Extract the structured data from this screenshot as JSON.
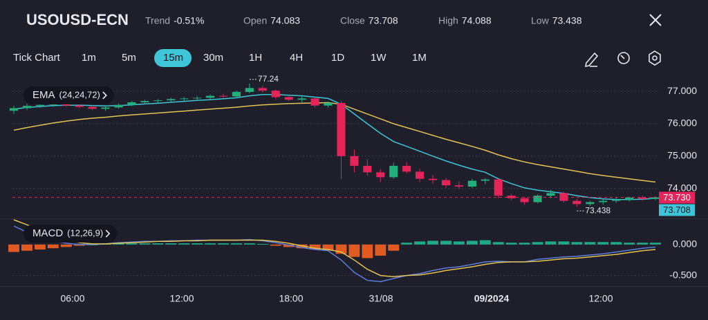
{
  "header": {
    "symbol": "USOUSD-ECN",
    "stats": [
      {
        "label": "Trend",
        "value": "-0.51%"
      },
      {
        "label": "Open",
        "value": "74.083"
      },
      {
        "label": "Close",
        "value": "73.708"
      },
      {
        "label": "High",
        "value": "74.088"
      },
      {
        "label": "Low",
        "value": "73.438"
      }
    ]
  },
  "timeframes": [
    "Tick Chart",
    "1m",
    "5m",
    "15m",
    "30m",
    "1H",
    "4H",
    "1D",
    "1W",
    "1M"
  ],
  "active_timeframe_index": 3,
  "chart": {
    "type": "candlestick",
    "indicator_label": "EMA",
    "indicator_params": "(24,24,72)",
    "up_color": "#22b07a",
    "down_color": "#e5245a",
    "ylim": [
      73.1,
      77.3
    ],
    "yticks": [
      {
        "value": 77,
        "label": "77.000"
      },
      {
        "value": 76,
        "label": "76.000"
      },
      {
        "value": 75,
        "label": "75.000"
      },
      {
        "value": 74,
        "label": "74.000"
      }
    ],
    "candles": [
      [
        76.4,
        76.55,
        76.3,
        76.48
      ],
      [
        76.48,
        76.62,
        76.42,
        76.55
      ],
      [
        76.55,
        76.62,
        76.48,
        76.58
      ],
      [
        76.58,
        76.66,
        76.52,
        76.62
      ],
      [
        76.62,
        76.68,
        76.52,
        76.56
      ],
      [
        76.56,
        76.62,
        76.48,
        76.52
      ],
      [
        76.52,
        76.58,
        76.42,
        76.46
      ],
      [
        76.46,
        76.56,
        76.4,
        76.5
      ],
      [
        76.5,
        76.62,
        76.46,
        76.58
      ],
      [
        76.58,
        76.7,
        76.54,
        76.66
      ],
      [
        76.66,
        76.74,
        76.6,
        76.7
      ],
      [
        76.7,
        76.76,
        76.64,
        76.72
      ],
      [
        76.72,
        76.8,
        76.66,
        76.76
      ],
      [
        76.76,
        76.82,
        76.7,
        76.78
      ],
      [
        76.78,
        76.86,
        76.72,
        76.8
      ],
      [
        76.8,
        76.9,
        76.76,
        76.86
      ],
      [
        76.86,
        76.92,
        76.8,
        76.84
      ],
      [
        76.84,
        77.02,
        76.8,
        76.98
      ],
      [
        76.98,
        77.24,
        76.94,
        77.1
      ],
      [
        77.1,
        77.18,
        76.96,
        77.02
      ],
      [
        77.02,
        77.06,
        76.76,
        76.82
      ],
      [
        76.82,
        76.88,
        76.7,
        76.74
      ],
      [
        76.74,
        76.84,
        76.66,
        76.78
      ],
      [
        76.78,
        76.82,
        76.5,
        76.56
      ],
      [
        76.56,
        76.68,
        76.5,
        76.64
      ],
      [
        76.64,
        76.7,
        74.3,
        75.0
      ],
      [
        75.0,
        75.2,
        74.5,
        74.7
      ],
      [
        74.7,
        74.9,
        74.4,
        74.5
      ],
      [
        74.5,
        74.6,
        74.2,
        74.35
      ],
      [
        74.35,
        74.8,
        74.3,
        74.7
      ],
      [
        74.7,
        74.82,
        74.46,
        74.52
      ],
      [
        74.52,
        74.6,
        74.2,
        74.3
      ],
      [
        74.3,
        74.42,
        74.16,
        74.26
      ],
      [
        74.26,
        74.32,
        74.02,
        74.1
      ],
      [
        74.1,
        74.22,
        74.0,
        74.06
      ],
      [
        74.06,
        74.3,
        74.02,
        74.24
      ],
      [
        74.24,
        74.32,
        74.14,
        74.28
      ],
      [
        74.28,
        74.3,
        73.7,
        73.78
      ],
      [
        73.78,
        73.84,
        73.64,
        73.7
      ],
      [
        73.7,
        73.74,
        73.5,
        73.58
      ],
      [
        73.58,
        73.82,
        73.54,
        73.78
      ],
      [
        73.78,
        73.96,
        73.7,
        73.86
      ],
      [
        73.86,
        73.9,
        73.56,
        73.62
      ],
      [
        73.62,
        73.68,
        73.438,
        73.52
      ],
      [
        73.52,
        73.62,
        73.46,
        73.58
      ],
      [
        73.58,
        73.66,
        73.5,
        73.62
      ],
      [
        73.62,
        73.72,
        73.56,
        73.66
      ],
      [
        73.66,
        73.76,
        73.6,
        73.72
      ],
      [
        73.72,
        73.78,
        73.62,
        73.68
      ],
      [
        73.68,
        73.76,
        73.64,
        73.73
      ]
    ],
    "ema": [
      {
        "color": "#3ec6d8",
        "values": [
          76.45,
          76.5,
          76.53,
          76.56,
          76.57,
          76.57,
          76.56,
          76.55,
          76.56,
          76.58,
          76.61,
          76.63,
          76.66,
          76.69,
          76.72,
          76.74,
          76.77,
          76.8,
          76.86,
          76.9,
          76.9,
          76.88,
          76.86,
          76.82,
          76.78,
          76.6,
          76.3,
          76.0,
          75.7,
          75.45,
          75.3,
          75.15,
          75.0,
          74.85,
          74.72,
          74.6,
          74.5,
          74.3,
          74.15,
          74.02,
          73.95,
          73.9,
          73.85,
          73.78,
          73.72,
          73.68,
          73.66,
          73.66,
          73.67,
          73.7
        ]
      },
      {
        "color": "#e3c452",
        "values": [
          75.8,
          75.88,
          75.95,
          76.02,
          76.08,
          76.13,
          76.17,
          76.2,
          76.24,
          76.27,
          76.3,
          76.33,
          76.36,
          76.39,
          76.42,
          76.45,
          76.48,
          76.51,
          76.55,
          76.58,
          76.6,
          76.62,
          76.63,
          76.64,
          76.65,
          76.6,
          76.45,
          76.3,
          76.15,
          76.0,
          75.88,
          75.76,
          75.64,
          75.52,
          75.41,
          75.3,
          75.18,
          75.04,
          74.92,
          74.82,
          74.74,
          74.67,
          74.6,
          74.53,
          74.46,
          74.4,
          74.35,
          74.3,
          74.25,
          74.2
        ]
      }
    ],
    "annotations": [
      {
        "value": 77.24,
        "label": "77.24"
      },
      {
        "value": 73.438,
        "label": "73.438"
      }
    ],
    "price_tags": [
      {
        "value": 73.73,
        "label": "73.730",
        "color": "#e5245a"
      },
      {
        "value": 73.708,
        "label": "73.708",
        "color": "#3ec6d8"
      }
    ],
    "x_labels": [
      "06:00",
      "12:00",
      "18:00",
      "31/08",
      "09/2024",
      "12:00"
    ],
    "macd": {
      "label": "MACD",
      "params": "(12,26,9)",
      "ylim": [
        -0.65,
        0.4
      ],
      "yticks": [
        {
          "value": 0,
          "label": "0.000"
        },
        {
          "value": -0.5,
          "label": "-0.500"
        }
      ],
      "pos_color": "#1fa98a",
      "neg_color": "#e05a22",
      "histogram": [
        -0.12,
        -0.1,
        -0.08,
        -0.06,
        -0.04,
        -0.02,
        0.0,
        0.01,
        0.02,
        0.02,
        0.02,
        0.02,
        0.02,
        0.02,
        0.02,
        0.02,
        0.02,
        0.02,
        0.02,
        0.01,
        -0.02,
        -0.04,
        -0.06,
        -0.08,
        -0.1,
        -0.15,
        -0.2,
        -0.22,
        -0.18,
        -0.1,
        0.03,
        0.05,
        0.06,
        0.06,
        0.05,
        0.06,
        0.07,
        0.04,
        0.03,
        0.03,
        0.04,
        0.05,
        0.05,
        0.04,
        0.04,
        0.04,
        0.04,
        0.03,
        0.03,
        0.03
      ],
      "lines": [
        {
          "color": "#5b7fe0",
          "values": [
            0.3,
            0.2,
            0.12,
            0.06,
            0.02,
            0.0,
            0.0,
            0.01,
            0.03,
            0.04,
            0.05,
            0.05,
            0.06,
            0.06,
            0.07,
            0.07,
            0.07,
            0.07,
            0.08,
            0.06,
            0.03,
            -0.01,
            -0.05,
            -0.08,
            -0.1,
            -0.25,
            -0.45,
            -0.58,
            -0.6,
            -0.55,
            -0.5,
            -0.47,
            -0.42,
            -0.38,
            -0.36,
            -0.32,
            -0.28,
            -0.27,
            -0.28,
            -0.28,
            -0.24,
            -0.22,
            -0.2,
            -0.19,
            -0.17,
            -0.15,
            -0.12,
            -0.09,
            -0.06,
            -0.04
          ]
        },
        {
          "color": "#e3c452",
          "values": [
            0.4,
            0.32,
            0.24,
            0.16,
            0.08,
            0.03,
            0.01,
            0.01,
            0.02,
            0.03,
            0.04,
            0.05,
            0.05,
            0.06,
            0.06,
            0.07,
            0.07,
            0.07,
            0.07,
            0.07,
            0.05,
            0.02,
            -0.02,
            -0.06,
            -0.08,
            -0.12,
            -0.25,
            -0.4,
            -0.5,
            -0.52,
            -0.5,
            -0.49,
            -0.46,
            -0.42,
            -0.39,
            -0.36,
            -0.32,
            -0.29,
            -0.28,
            -0.28,
            -0.27,
            -0.25,
            -0.23,
            -0.22,
            -0.2,
            -0.18,
            -0.16,
            -0.13,
            -0.1,
            -0.08
          ]
        }
      ]
    }
  }
}
